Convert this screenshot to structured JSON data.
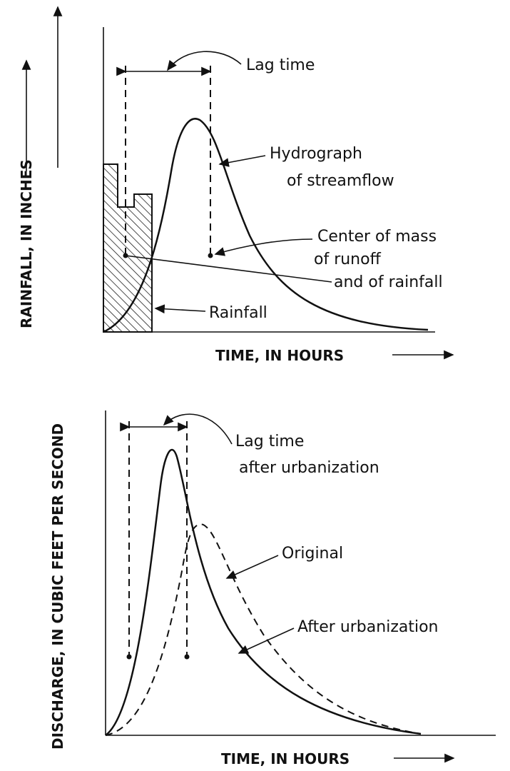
{
  "y_axis": {
    "rainfall": "RAINFALL, IN INCHES",
    "discharge": "DISCHARGE, IN CUBIC FEET PER SECOND"
  },
  "top_panel": {
    "lag_time": "Lag time",
    "hydrograph": [
      "Hydrograph",
      "of streamflow"
    ],
    "center_of_mass": [
      "Center of mass",
      "of runoff",
      "and of rainfall"
    ],
    "rainfall": "Rainfall",
    "x_axis": "TIME, IN HOURS"
  },
  "bottom_panel": {
    "lag_time": [
      "Lag time",
      "after urbanization"
    ],
    "original": "Original",
    "after_urbanization": "After urbanization",
    "x_axis": "TIME, IN HOURS"
  }
}
